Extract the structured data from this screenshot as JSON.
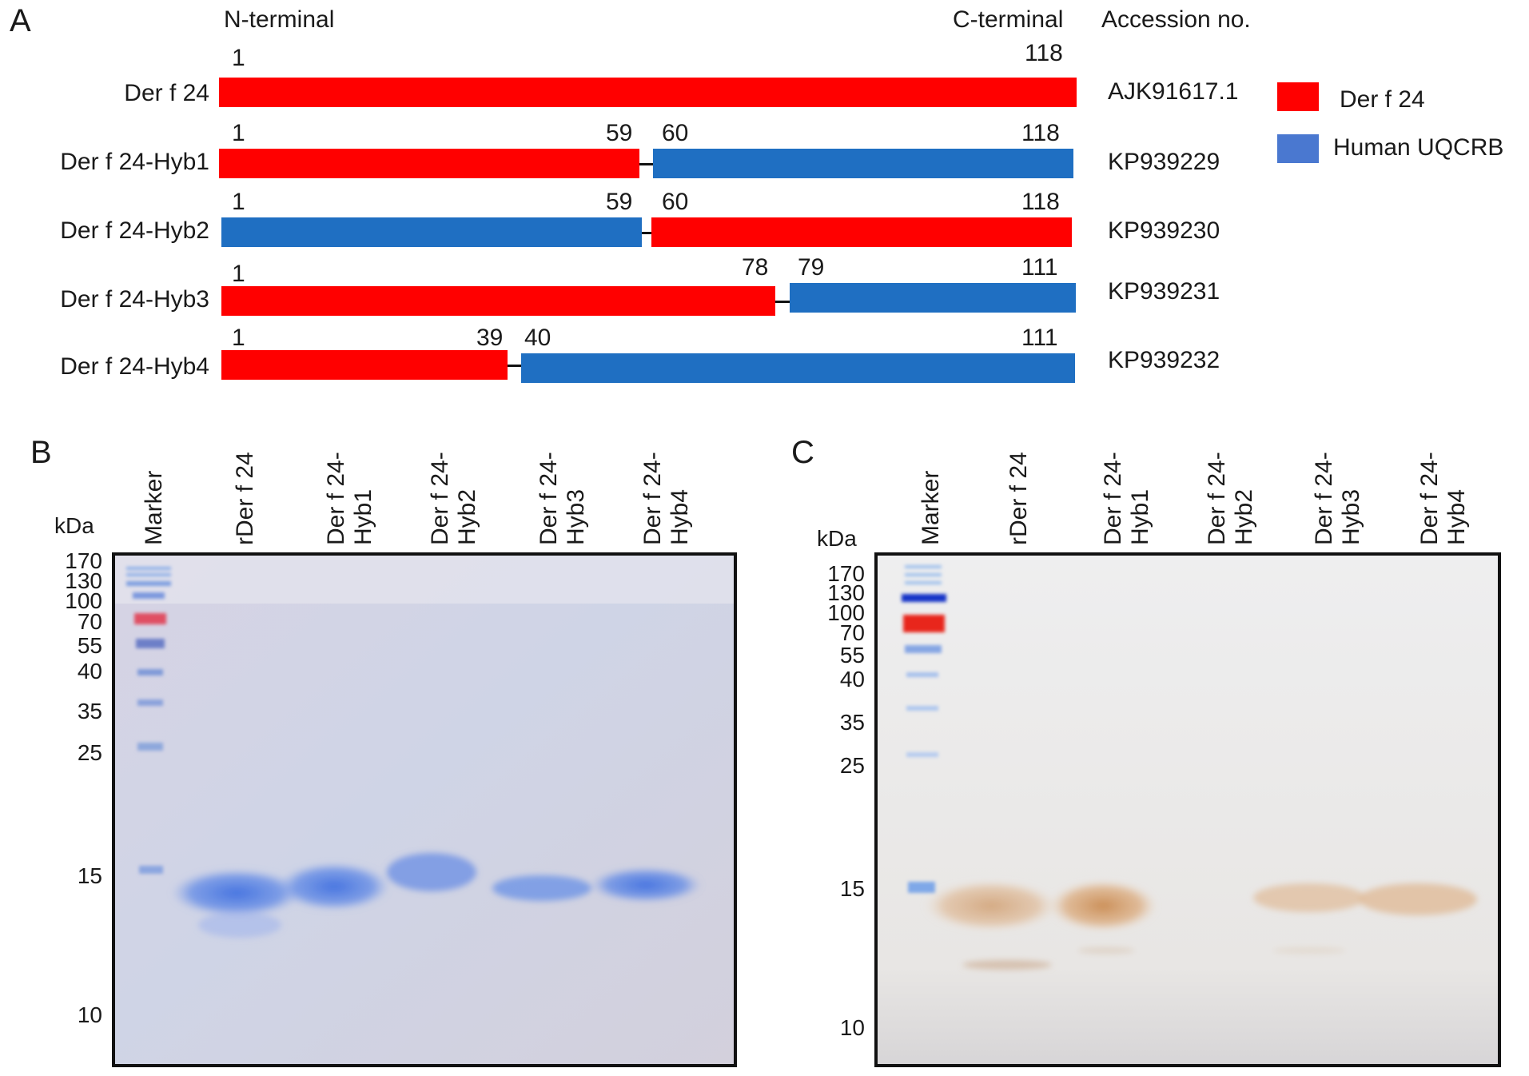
{
  "panel_a": {
    "letter": "A",
    "n_terminal": "N-terminal",
    "c_terminal": "C-terminal",
    "accession_header": "Accession no.",
    "constructs": [
      {
        "name": "Der f 24",
        "accession": "AJK91617.1",
        "first": "1",
        "last": "118",
        "junction_left": "",
        "junction_right": ""
      },
      {
        "name": "Der f 24-Hyb1",
        "accession": "KP939229",
        "first": "1",
        "last": "118",
        "junction_left": "59",
        "junction_right": "60"
      },
      {
        "name": "Der f 24-Hyb2",
        "accession": "KP939230",
        "first": "1",
        "last": "118",
        "junction_left": "59",
        "junction_right": "60"
      },
      {
        "name": "Der f 24-Hyb3",
        "accession": "KP939231",
        "first": "1",
        "last": "111",
        "junction_left": "78",
        "junction_right": "79"
      },
      {
        "name": "Der f 24-Hyb4",
        "accession": "KP939232",
        "first": "1",
        "last": "111",
        "junction_left": "39",
        "junction_right": "40"
      }
    ],
    "legend": [
      {
        "label": "Der f 24",
        "color": "#ff0000"
      },
      {
        "label": "Human UQCRB",
        "color": "#1f6fc2"
      }
    ]
  },
  "panel_b": {
    "letter": "B",
    "unit": "kDa",
    "lanes": [
      {
        "line1": "Marker",
        "line2": ""
      },
      {
        "line1": "rDer f 24",
        "line2": ""
      },
      {
        "line1": "Der f 24-",
        "line2": "Hyb1"
      },
      {
        "line1": "Der f 24-",
        "line2": "Hyb2"
      },
      {
        "line1": "Der f 24-",
        "line2": "Hyb3"
      },
      {
        "line1": "Der f 24-",
        "line2": "Hyb4"
      }
    ],
    "markers": [
      "170",
      "130",
      "100",
      "70",
      "55",
      "40",
      "35",
      "25",
      "15",
      "10"
    ]
  },
  "panel_c": {
    "letter": "C",
    "unit": "kDa",
    "lanes": [
      {
        "line1": "Marker",
        "line2": ""
      },
      {
        "line1": "rDer f 24",
        "line2": ""
      },
      {
        "line1": "Der f 24-",
        "line2": "Hyb1"
      },
      {
        "line1": "Der f 24-",
        "line2": "Hyb2"
      },
      {
        "line1": "Der f 24-",
        "line2": "Hyb3"
      },
      {
        "line1": "Der f 24-",
        "line2": "Hyb4"
      }
    ],
    "markers": [
      "170",
      "130",
      "100",
      "70",
      "55",
      "40",
      "35",
      "25",
      "15",
      "10"
    ]
  }
}
